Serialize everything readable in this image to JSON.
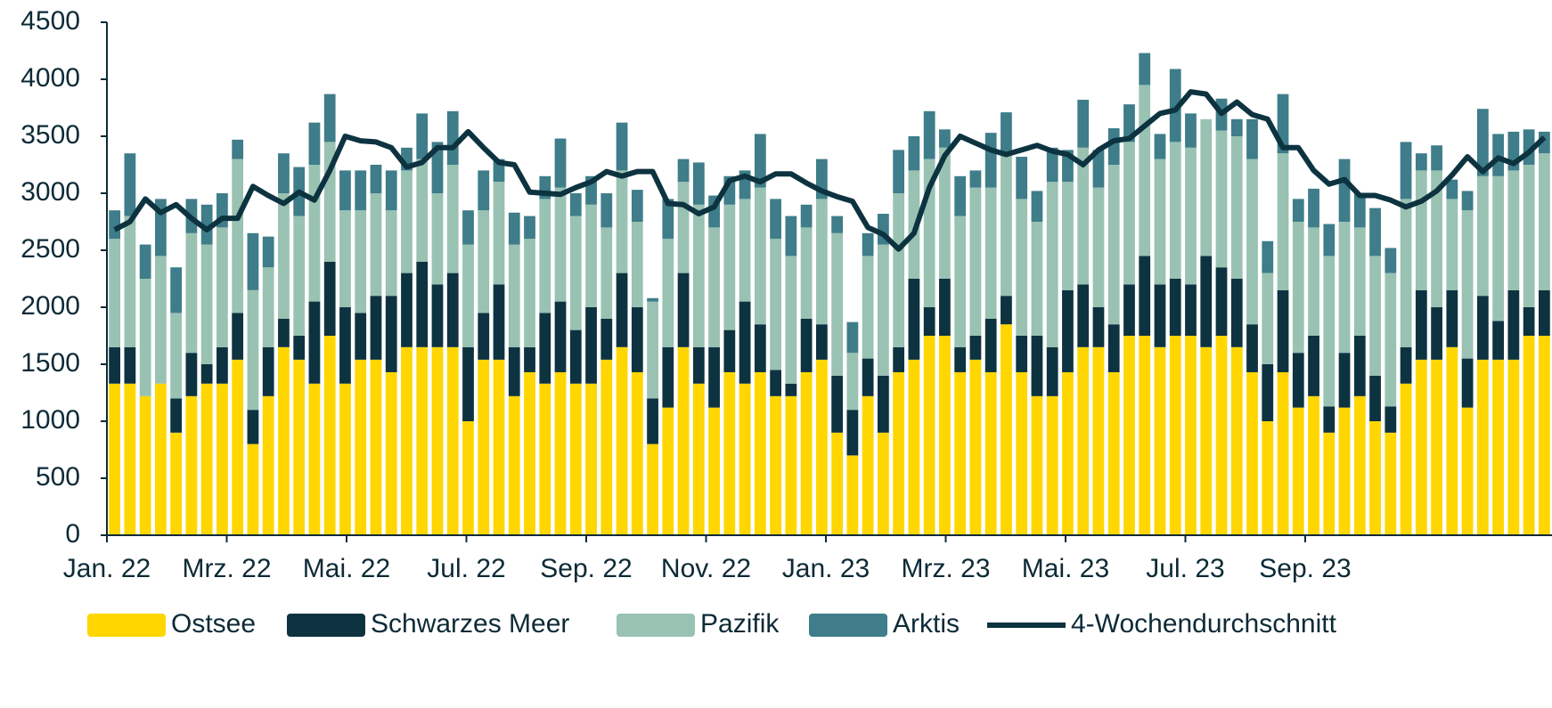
{
  "chart_data": {
    "type": "bar",
    "stacked": true,
    "xticks": [
      "Jan. 22",
      "Mrz. 22",
      "Mai. 22",
      "Jul. 22",
      "Sep. 22",
      "Nov. 22",
      "Jan. 23",
      "Mrz. 23",
      "Mai. 23",
      "Jul. 23",
      "Sep. 23"
    ],
    "ylim": [
      0,
      4500
    ],
    "yticks": [
      0,
      500,
      1000,
      1500,
      2000,
      2500,
      3000,
      3500,
      4000,
      4500
    ],
    "legend": "bottom",
    "series": [
      {
        "name": "Ostsee",
        "color": "#ffd600",
        "values": [
          1330,
          1330,
          1220,
          1330,
          900,
          1220,
          1330,
          1330,
          1540,
          800,
          1220,
          1650,
          1540,
          1330,
          1750,
          1330,
          1540,
          1540,
          1430,
          1650,
          1650,
          1650,
          1650,
          1000,
          1540,
          1540,
          1220,
          1430,
          1330,
          1430,
          1330,
          1330,
          1540,
          1650,
          1430,
          800,
          1120,
          1650,
          1330,
          1120,
          1430,
          1330,
          1430,
          1220,
          1220,
          1430,
          1540,
          900,
          700,
          1220,
          900,
          1430,
          1540,
          1750,
          1750,
          1430,
          1540,
          1430,
          1850,
          1430,
          1220,
          1220,
          1430,
          1650,
          1650,
          1430,
          1750,
          1750,
          1650,
          1750,
          1750,
          1650,
          1750,
          1650,
          1430,
          1000,
          1430,
          1120,
          1220,
          900,
          1120,
          1220,
          1000,
          900,
          1330,
          1540,
          1540,
          1650,
          1120,
          1540,
          1540,
          1540,
          1750,
          1750
        ]
      },
      {
        "name": "Schwarzes Meer",
        "color": "#0d3340",
        "values": [
          320,
          320,
          0,
          0,
          300,
          380,
          170,
          320,
          410,
          300,
          430,
          250,
          210,
          720,
          650,
          670,
          410,
          560,
          670,
          650,
          750,
          550,
          650,
          650,
          410,
          660,
          430,
          220,
          620,
          620,
          470,
          670,
          360,
          650,
          570,
          400,
          530,
          650,
          320,
          530,
          370,
          720,
          420,
          230,
          110,
          470,
          310,
          500,
          400,
          330,
          500,
          220,
          710,
          250,
          500,
          220,
          210,
          470,
          250,
          320,
          530,
          430,
          720,
          550,
          350,
          420,
          450,
          700,
          550,
          500,
          450,
          800,
          600,
          600,
          420,
          500,
          720,
          480,
          530,
          230,
          480,
          530,
          400,
          230,
          320,
          610,
          460,
          500,
          430,
          560,
          340,
          610,
          250,
          400
        ]
      },
      {
        "name": "Pazifik",
        "color": "#99c2b3",
        "values": [
          950,
          1150,
          1030,
          1120,
          750,
          1050,
          1050,
          1050,
          1350,
          1050,
          700,
          1100,
          1050,
          1200,
          1050,
          850,
          900,
          900,
          750,
          900,
          900,
          800,
          950,
          900,
          900,
          900,
          900,
          950,
          1000,
          1000,
          1000,
          900,
          800,
          900,
          750,
          850,
          950,
          800,
          1250,
          1050,
          1100,
          900,
          1200,
          1150,
          1120,
          800,
          1100,
          1250,
          500,
          900,
          1150,
          1350,
          950,
          1300,
          1150,
          1150,
          1300,
          1150,
          1250,
          1200,
          1000,
          1450,
          950,
          1200,
          1050,
          1400,
          1250,
          1500,
          1100,
          1200,
          1200,
          1200,
          1200,
          1250,
          1450,
          800,
          1200,
          1150,
          950,
          1320,
          1150,
          950,
          1050,
          1170,
          1300,
          1050,
          1200,
          800,
          1300,
          1050,
          1270,
          1050,
          1250,
          1200
        ]
      },
      {
        "name": "Arktis",
        "color": "#3e7d89",
        "values": [
          250,
          550,
          300,
          500,
          400,
          300,
          350,
          300,
          170,
          500,
          270,
          350,
          430,
          370,
          420,
          350,
          350,
          250,
          350,
          200,
          400,
          450,
          470,
          300,
          350,
          200,
          280,
          200,
          200,
          430,
          200,
          250,
          300,
          420,
          280,
          30,
          350,
          200,
          370,
          280,
          250,
          250,
          470,
          350,
          350,
          200,
          350,
          150,
          270,
          200,
          270,
          380,
          300,
          420,
          160,
          350,
          150,
          480,
          360,
          370,
          270,
          300,
          280,
          420,
          330,
          320,
          330,
          280,
          220,
          640,
          300,
          0,
          280,
          150,
          350,
          280,
          520,
          200,
          340,
          280,
          550,
          300,
          420,
          220,
          500,
          150,
          220,
          170,
          170,
          590,
          370,
          340,
          310,
          190
        ]
      },
      {
        "name": "4-Wochendurchschnitt",
        "type": "line",
        "color": "#0d3340",
        "values": [
          2680,
          2750,
          2950,
          2830,
          2900,
          2780,
          2680,
          2780,
          2780,
          3060,
          2980,
          2910,
          3010,
          2940,
          3200,
          3500,
          3460,
          3450,
          3400,
          3230,
          3270,
          3400,
          3400,
          3540,
          3400,
          3270,
          3250,
          3010,
          3000,
          2990,
          3050,
          3100,
          3190,
          3150,
          3190,
          3190,
          2910,
          2900,
          2820,
          2880,
          3110,
          3150,
          3100,
          3170,
          3170,
          3090,
          3020,
          2970,
          2930,
          2700,
          2640,
          2510,
          2650,
          3050,
          3330,
          3500,
          3440,
          3380,
          3340,
          3380,
          3420,
          3370,
          3340,
          3250,
          3380,
          3460,
          3480,
          3590,
          3700,
          3730,
          3890,
          3870,
          3700,
          3800,
          3690,
          3650,
          3400,
          3400,
          3200,
          3080,
          3120,
          2980,
          2980,
          2940,
          2880,
          2930,
          3020,
          3160,
          3320,
          3190,
          3310,
          3260,
          3360,
          3490
        ]
      }
    ]
  }
}
